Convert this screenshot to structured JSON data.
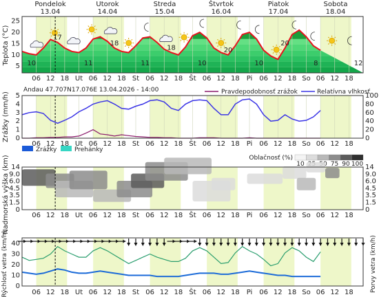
{
  "colors": {
    "day_band": "#eef7c9",
    "temp_line": "#e8121c",
    "precip_prob": "#8b1a6b",
    "humidity": "#3a34e6",
    "rain": "#1a5ad8",
    "showers": "#36d6c4",
    "wind": "#1a6ad8",
    "gust": "#2a9e6e",
    "sunday": "#d40000"
  },
  "days": [
    {
      "name": "Pondelok",
      "date": "13.04"
    },
    {
      "name": "Utorok",
      "date": "14.04"
    },
    {
      "name": "Streda",
      "date": "15.04"
    },
    {
      "name": "Štvrtok",
      "date": "16.04"
    },
    {
      "name": "Piatok",
      "date": "17.04"
    },
    {
      "name": "Sobota",
      "date": "18.04"
    }
  ],
  "x_ticks": [
    "06",
    "12",
    "18",
    "Ut",
    "06",
    "12",
    "18",
    "St",
    "06",
    "12",
    "18",
    "Št",
    "06",
    "12",
    "18",
    "Pi",
    "06",
    "12",
    "18",
    "So",
    "06",
    "12",
    "18"
  ],
  "temperature": {
    "ylabel": "Teplota (°C)",
    "ylim": [
      2,
      27
    ],
    "yticks": [
      "5",
      "10",
      "15",
      "20",
      "25"
    ],
    "max_labels": [
      "17",
      "18",
      "18",
      "20",
      "20",
      "21"
    ],
    "min_labels": [
      "10",
      "11",
      "11",
      "10",
      "10",
      "8",
      "12"
    ],
    "icons": [
      "cloud-icon",
      "sun-icon",
      "cloud-icon",
      "sun-icon",
      "cloud-icon",
      "sun-icon",
      "moon-icon",
      "cloud-icon",
      "sun-icon",
      "moon-icon",
      "sun-icon",
      "moon-icon",
      "moon-icon",
      "sun-icon",
      "moon-icon",
      "moon-icon",
      "sun-icon",
      "moon-icon"
    ]
  },
  "precip": {
    "ylabel": "Zrážky (mm/h)",
    "yticks": [
      "5",
      "4",
      "3",
      "2",
      "1",
      "0"
    ],
    "right_ticks": [
      "100",
      "80",
      "60",
      "40",
      "20",
      "0"
    ],
    "header": "Andau   47.707N17.076E   13.04.2026 - 14:00",
    "legend_prob": "Pravdepodobnosť zrážok",
    "legend_hum": "Relatívna vlhkosť",
    "legend_rain": "Zrážky",
    "legend_showers": "Prehánky"
  },
  "cloud": {
    "legend_title": "Oblačnosť (%)",
    "legend_ticks": [
      "10",
      "25",
      "50",
      "75",
      "90",
      "100"
    ],
    "ylabel": "Nadmorská výška (km)",
    "yticks": [
      "14",
      "9.0",
      "6.0",
      "4.5",
      "3.5",
      "1.5",
      "0"
    ]
  },
  "wind": {
    "ylabel_left": "Rýchlosť vetra (km/h)",
    "ylabel_right": "Porvy vetra (km/h)",
    "yticks": [
      "40",
      "30",
      "20",
      "10",
      "0"
    ]
  },
  "chart_data": {
    "type": "line",
    "x_hours_from": "13.04 00:00",
    "x_step_hours": 3,
    "series": [
      {
        "name": "Teplota",
        "unit": "°C",
        "values": [
          11.5,
          10.5,
          10,
          13,
          16.8,
          15.5,
          13,
          11.5,
          11,
          13,
          17,
          18,
          16,
          13,
          11.5,
          11,
          14,
          17.5,
          18,
          15.5,
          12.5,
          11,
          10,
          13.5,
          18.5,
          20,
          17.5,
          13,
          11,
          10,
          14,
          19,
          20,
          17,
          12,
          9.5,
          8,
          13,
          19,
          21,
          18,
          14,
          12
        ]
      },
      {
        "name": "Relatívna vlhkosť",
        "unit": "%",
        "values": [
          55,
          60,
          62,
          58,
          42,
          35,
          42,
          50,
          62,
          70,
          80,
          85,
          88,
          80,
          70,
          68,
          75,
          80,
          88,
          90,
          85,
          70,
          65,
          80,
          88,
          90,
          88,
          70,
          55,
          55,
          80,
          90,
          92,
          80,
          55,
          40,
          42,
          55,
          45,
          40,
          42,
          50,
          65
        ]
      },
      {
        "name": "Pravdepodobnosť zrážok",
        "unit": "%",
        "values": [
          0,
          0,
          1,
          1,
          2,
          2,
          3,
          3,
          5,
          12,
          20,
          10,
          8,
          5,
          8,
          6,
          4,
          3,
          2,
          2,
          1,
          1,
          0,
          0,
          0,
          1,
          1,
          1,
          0,
          0,
          0,
          0,
          1,
          0,
          0,
          0,
          0,
          0,
          0,
          0,
          0,
          0,
          0
        ]
      },
      {
        "name": "Rýchlosť vetra",
        "unit": "km/h",
        "values": [
          13,
          12,
          11,
          12,
          14,
          16,
          15,
          13,
          12,
          12,
          13,
          14,
          13,
          12,
          11,
          10,
          10,
          10,
          10,
          9,
          9,
          9,
          9,
          10,
          11,
          12,
          12,
          12,
          11,
          11,
          12,
          13,
          14,
          13,
          12,
          11,
          10,
          10,
          9,
          9,
          9,
          9,
          9
        ]
      },
      {
        "name": "Porvy vetra",
        "unit": "km/h",
        "values": [
          27,
          24,
          25,
          26,
          30,
          37,
          33,
          30,
          27,
          27,
          33,
          36,
          33,
          29,
          25,
          21,
          24,
          27,
          30,
          27,
          25,
          23,
          23,
          26,
          33,
          36,
          33,
          27,
          21,
          22,
          31,
          37,
          33,
          30,
          25,
          19,
          21,
          31,
          36,
          33,
          27,
          23,
          32
        ]
      }
    ],
    "ylim_temp": [
      2,
      27
    ],
    "ylim_precip": [
      0,
      5
    ],
    "ylim_humidity": [
      0,
      100
    ],
    "ylim_wind": [
      0,
      40
    ]
  }
}
